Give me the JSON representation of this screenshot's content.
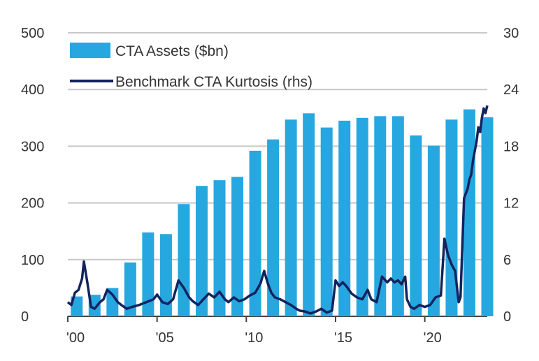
{
  "chart_data": {
    "type": "bar+line",
    "grid": true,
    "legend_position": "top-left",
    "colors": {
      "bars": "#27a7e0",
      "line": "#12235e",
      "grid": "#c8c8c8",
      "text": "#333333"
    },
    "left_axis": {
      "ylim": [
        0,
        500
      ],
      "ticks": [
        "0",
        "100",
        "200",
        "300",
        "400",
        "500"
      ]
    },
    "right_axis": {
      "ylim": [
        0,
        30
      ],
      "ticks": [
        "0",
        "6",
        "12",
        "18",
        "24",
        "30"
      ]
    },
    "x_axis": {
      "range": [
        2000,
        2023.5
      ],
      "ticks": [
        {
          "value": 2000,
          "label": "'00"
        },
        {
          "value": 2005,
          "label": "'05"
        },
        {
          "value": 2010,
          "label": "'10"
        },
        {
          "value": 2015,
          "label": "'15"
        },
        {
          "value": 2020,
          "label": "'20"
        }
      ]
    },
    "legend": {
      "bars": "CTA Assets ($bn)",
      "line": "Benchmark CTA Kurtosis (rhs)"
    },
    "bars": {
      "name": "CTA Assets ($bn)",
      "axis": "left",
      "x": [
        2000,
        2001,
        2002,
        2003,
        2004,
        2005,
        2006,
        2007,
        2008,
        2009,
        2010,
        2011,
        2012,
        2013,
        2014,
        2015,
        2016,
        2017,
        2018,
        2019,
        2020,
        2021,
        2022,
        2023
      ],
      "values": [
        35,
        38,
        50,
        95,
        148,
        145,
        198,
        230,
        240,
        246,
        292,
        312,
        347,
        358,
        333,
        345,
        350,
        353,
        353,
        319,
        301,
        347,
        365,
        351
      ]
    },
    "line": {
      "name": "Benchmark CTA Kurtosis (rhs)",
      "axis": "right",
      "x": [
        2000.0,
        2000.2,
        2000.4,
        2000.6,
        2000.8,
        2000.9,
        2001.1,
        2001.3,
        2001.5,
        2001.8,
        2002.0,
        2002.2,
        2002.5,
        2002.8,
        2003.0,
        2003.3,
        2003.6,
        2004.0,
        2004.4,
        2004.8,
        2005.0,
        2005.3,
        2005.6,
        2005.9,
        2006.2,
        2006.5,
        2006.8,
        2007.0,
        2007.3,
        2007.6,
        2007.9,
        2008.2,
        2008.5,
        2008.8,
        2009.0,
        2009.3,
        2009.6,
        2009.9,
        2010.2,
        2010.5,
        2010.8,
        2011.0,
        2011.2,
        2011.4,
        2011.6,
        2011.9,
        2012.2,
        2012.5,
        2012.8,
        2013.0,
        2013.3,
        2013.6,
        2013.9,
        2014.2,
        2014.5,
        2014.8,
        2015.0,
        2015.2,
        2015.4,
        2015.6,
        2015.9,
        2016.2,
        2016.5,
        2016.8,
        2017.0,
        2017.3,
        2017.6,
        2017.9,
        2018.1,
        2018.3,
        2018.5,
        2018.7,
        2018.9,
        2019.0,
        2019.2,
        2019.4,
        2019.7,
        2020.0,
        2020.3,
        2020.6,
        2020.9,
        2021.1,
        2021.3,
        2021.5,
        2021.7,
        2021.9,
        2022.0,
        2022.2,
        2022.4,
        2022.5,
        2022.6,
        2022.7,
        2022.9,
        2023.0,
        2023.1,
        2023.2,
        2023.3,
        2023.4,
        2023.5
      ],
      "values": [
        1.5,
        1.2,
        2.5,
        2.8,
        4.0,
        5.8,
        3.5,
        1.0,
        0.8,
        1.5,
        1.8,
        2.8,
        2.3,
        1.5,
        1.2,
        0.8,
        1.0,
        1.2,
        1.5,
        1.8,
        2.3,
        1.5,
        1.3,
        1.8,
        3.8,
        3.0,
        2.0,
        1.6,
        1.2,
        1.8,
        2.4,
        2.0,
        2.6,
        1.8,
        1.5,
        2.0,
        1.6,
        1.8,
        2.2,
        2.5,
        3.5,
        4.8,
        3.5,
        2.5,
        2.0,
        1.8,
        1.5,
        1.2,
        0.8,
        0.6,
        0.5,
        0.3,
        0.5,
        0.8,
        0.4,
        0.6,
        3.8,
        3.2,
        3.6,
        3.2,
        2.4,
        2.0,
        1.8,
        2.8,
        1.8,
        1.5,
        4.2,
        3.6,
        4.0,
        3.6,
        3.8,
        3.4,
        4.2,
        1.8,
        1.0,
        0.8,
        1.2,
        1.0,
        1.2,
        2.0,
        2.2,
        8.2,
        6.5,
        5.5,
        4.8,
        1.5,
        2.0,
        12.5,
        13.5,
        14.5,
        15.0,
        16.5,
        18.5,
        20.0,
        19.5,
        21.0,
        22.0,
        21.5,
        22.3
      ]
    }
  }
}
